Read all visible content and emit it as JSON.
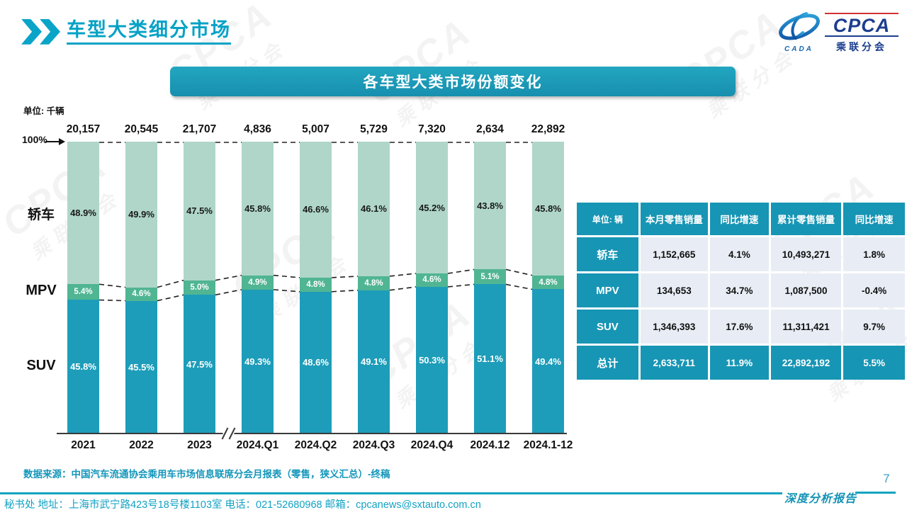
{
  "header": {
    "title": "车型大类细分市场"
  },
  "logo": {
    "name": "CPCA",
    "subtitle": "乘联分会",
    "mark_caption": "CADA"
  },
  "watermark": {
    "line1": "CPCA",
    "line2": "乘联分会"
  },
  "banner_title": "各车型大类市场份额变化",
  "chart_data": {
    "type": "bar",
    "stacked": true,
    "title": "各车型大类市场份额变化",
    "unit_label": "单位: 千辆",
    "y_axis_top_label": "100%",
    "ylim": [
      0,
      100
    ],
    "value_suffix": "%",
    "axis_break_between": [
      "2023",
      "2024.Q1"
    ],
    "categories": [
      "2021",
      "2022",
      "2023",
      "2024.Q1",
      "2024.Q2",
      "2024.Q3",
      "2024.Q4",
      "2024.12",
      "2024.1-12"
    ],
    "totals_labels": [
      "20,157",
      "20,545",
      "21,707",
      "4,836",
      "5,007",
      "5,729",
      "7,320",
      "2,634",
      "22,892"
    ],
    "totals_thousand_units": [
      20157,
      20545,
      21707,
      4836,
      5007,
      5729,
      7320,
      2634,
      22892
    ],
    "series": [
      {
        "name": "SUV",
        "values": [
          45.8,
          45.5,
          47.5,
          49.3,
          48.6,
          49.1,
          50.3,
          51.1,
          49.4
        ],
        "color": "#1d9db9",
        "label_color": "#ffffff"
      },
      {
        "name": "MPV",
        "values": [
          5.4,
          4.6,
          5.0,
          4.9,
          4.8,
          4.8,
          4.6,
          5.1,
          4.8
        ],
        "color": "#50b592",
        "label_color": "#ffffff"
      },
      {
        "name": "轿车",
        "values": [
          48.9,
          49.9,
          47.5,
          45.8,
          46.6,
          46.1,
          45.2,
          43.8,
          45.8
        ],
        "color": "#afd6c9",
        "label_color": "#1a1a1a"
      }
    ]
  },
  "table": {
    "header": [
      "单位: 辆",
      "本月零售销量",
      "同比增速",
      "累计零售销量",
      "同比增速"
    ],
    "rows": [
      {
        "label": "轿车",
        "cells": [
          "1,152,665",
          "4.1%",
          "10,493,271",
          "1.8%"
        ],
        "highlight": false
      },
      {
        "label": "MPV",
        "cells": [
          "134,653",
          "34.7%",
          "1,087,500",
          "-0.4%"
        ],
        "highlight": false
      },
      {
        "label": "SUV",
        "cells": [
          "1,346,393",
          "17.6%",
          "11,311,421",
          "9.7%"
        ],
        "highlight": false
      },
      {
        "label": "总计",
        "cells": [
          "2,633,711",
          "11.9%",
          "22,892,192",
          "5.5%"
        ],
        "highlight": true
      }
    ]
  },
  "source_note": "数据来源：中国汽车流通协会乘用车市场信息联席分会月报表（零售，狭义汇总）-终稿",
  "footer": {
    "text": "秘书处  地址：上海市武宁路423号18号楼1103室 电话：021-52680968  邮箱：cpcanews@sxtauto.com.cn",
    "report_label": "深度分析报告",
    "page_number": "7"
  },
  "colors": {
    "accent_teal": "#1795b4",
    "title_cyan": "#05a2c6",
    "logo_navy": "#1b3e8e",
    "table_cell_light": "#e8edf5"
  }
}
